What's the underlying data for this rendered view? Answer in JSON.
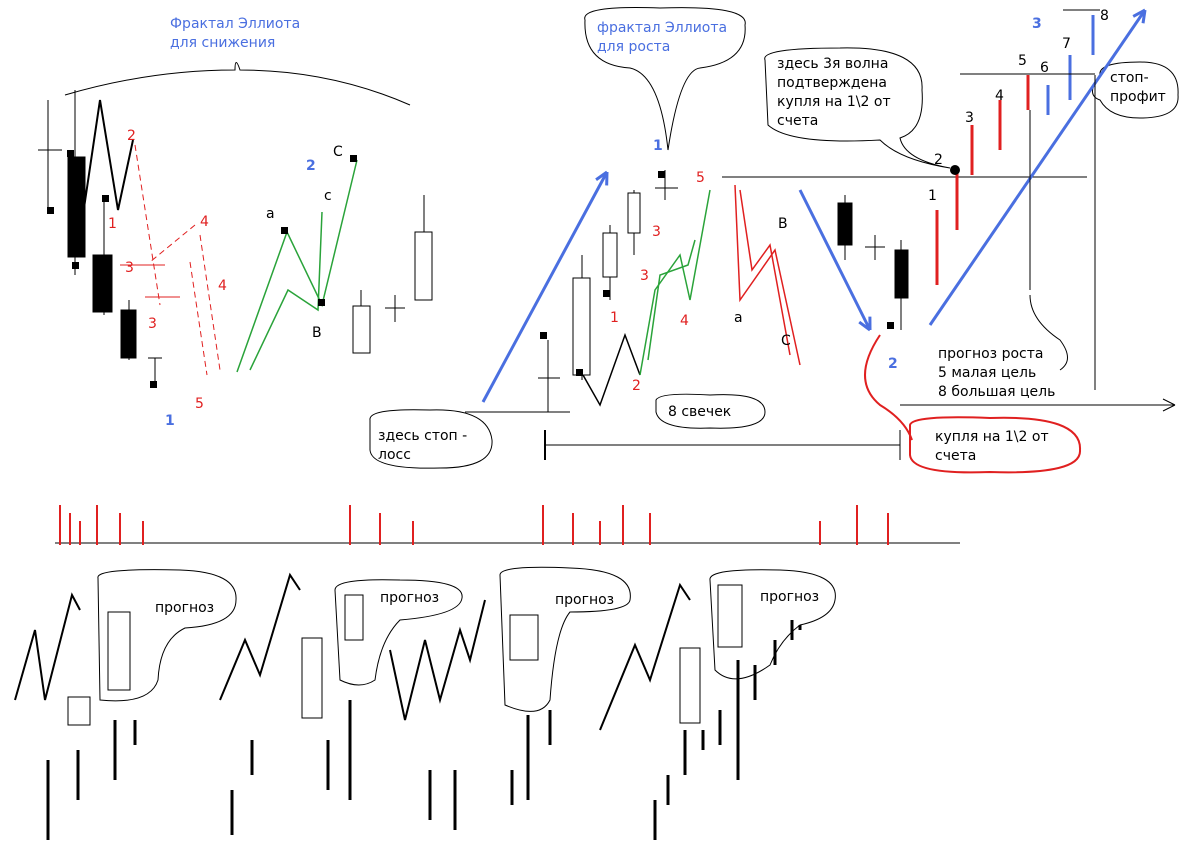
{
  "notes": [
    [
      "Фрактал  Эллиота",
      "для  снижения"
    ],
    [
      "фрактал Эллиота",
      "для роста"
    ],
    [
      "здесь 3я волна",
      "подтверждена",
      "купля на 1\\2 от",
      "счета"
    ],
    [
      "стоп-",
      "профит"
    ],
    [
      "прогноз роста",
      "5 малая цель",
      "8  большая цель"
    ],
    [
      "здесь стоп -",
      "лосс"
    ],
    [
      "8  свечек"
    ],
    [
      "купля  на 1\\2  от",
      "счета"
    ],
    [
      "прогноз"
    ],
    [
      "прогноз"
    ],
    [
      "прогноз"
    ],
    [
      "прогноз"
    ]
  ],
  "wave_labels": [
    "2",
    "1",
    "3",
    "3",
    "4",
    "4",
    "5",
    "1",
    "a",
    "B",
    "c",
    "2",
    "C",
    "1",
    "5",
    "3",
    "3",
    "1",
    "2",
    "4",
    "B",
    "a",
    "C",
    "2",
    "1",
    "2",
    "3",
    "4",
    "5",
    "6",
    "7",
    "8",
    "3"
  ]
}
